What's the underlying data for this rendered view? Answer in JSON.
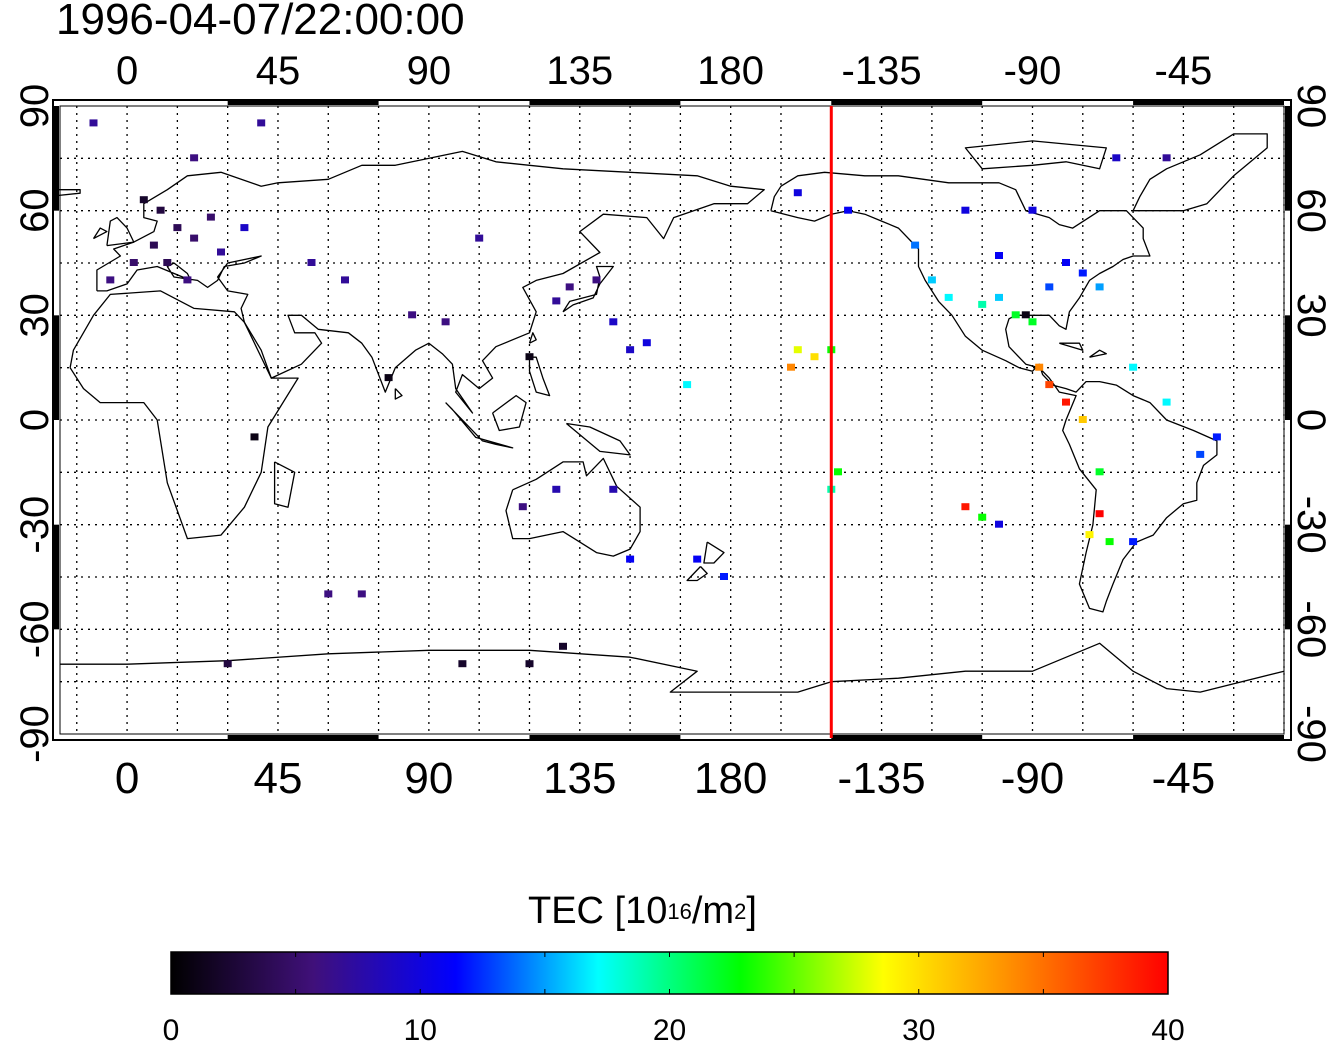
{
  "title": "1996-04-07/22:00:00",
  "map": {
    "projection": "equirectangular",
    "lon_range": [
      -20,
      345
    ],
    "lat_range": [
      -90,
      90
    ],
    "lon_tick_labels_top": [
      "0",
      "45",
      "90",
      "135",
      "180",
      "-135",
      "-90",
      "-45"
    ],
    "lon_tick_labels_bottom": [
      "0",
      "45",
      "90",
      "135",
      "180",
      "-135",
      "-90",
      "-45"
    ],
    "lon_tick_values": [
      0,
      45,
      90,
      135,
      180,
      225,
      270,
      315
    ],
    "lat_tick_labels": [
      "90",
      "60",
      "30",
      "0",
      "-30",
      "-60",
      "-90"
    ],
    "lat_tick_values": [
      90,
      60,
      30,
      0,
      -30,
      -60,
      -90
    ],
    "grid": "dotted, every 15 degrees",
    "marker_line": {
      "lon": "-150",
      "color": "#ff0000"
    }
  },
  "colorbar": {
    "label_parts": {
      "main": "TEC  [10",
      "sup1": "16",
      "mid": "/m",
      "sup2": "2",
      "end": "]"
    },
    "min": 0,
    "max": 40,
    "tick_labels": [
      "0",
      "10",
      "20",
      "30",
      "40"
    ],
    "colormap": "black-purple-blue-cyan-green-yellow-orange-red",
    "stops": [
      "#000000",
      "#40107a",
      "#0000ff",
      "#00ffff",
      "#00ff00",
      "#ffff00",
      "#ff8000",
      "#ff0000"
    ]
  },
  "chart_data": {
    "type": "scatter",
    "title": "1996-04-07/22:00:00",
    "xlabel": "",
    "ylabel": "",
    "value_label": "TEC [10^16/m^2]",
    "xlim": [
      -20,
      345
    ],
    "ylim": [
      -90,
      90
    ],
    "points": [
      {
        "lon": 5,
        "lat": 63,
        "tec": 2
      },
      {
        "lon": 10,
        "lat": 60,
        "tec": 3
      },
      {
        "lon": 15,
        "lat": 55,
        "tec": 4
      },
      {
        "lon": 8,
        "lat": 50,
        "tec": 4
      },
      {
        "lon": 20,
        "lat": 52,
        "tec": 5
      },
      {
        "lon": 25,
        "lat": 58,
        "tec": 5
      },
      {
        "lon": 2,
        "lat": 45,
        "tec": 5
      },
      {
        "lon": 12,
        "lat": 45,
        "tec": 4
      },
      {
        "lon": -5,
        "lat": 40,
        "tec": 6
      },
      {
        "lon": 18,
        "lat": 40,
        "tec": 6
      },
      {
        "lon": 28,
        "lat": 48,
        "tec": 7
      },
      {
        "lon": 35,
        "lat": 55,
        "tec": 9
      },
      {
        "lon": -10,
        "lat": 85,
        "tec": 7
      },
      {
        "lon": 40,
        "lat": 85,
        "tec": 7
      },
      {
        "lon": 20,
        "lat": 75,
        "tec": 6
      },
      {
        "lon": 55,
        "lat": 45,
        "tec": 7
      },
      {
        "lon": 65,
        "lat": 40,
        "tec": 7
      },
      {
        "lon": 105,
        "lat": 52,
        "tec": 7
      },
      {
        "lon": 85,
        "lat": 30,
        "tec": 6
      },
      {
        "lon": 95,
        "lat": 28,
        "tec": 6
      },
      {
        "lon": 78,
        "lat": 12,
        "tec": 1
      },
      {
        "lon": 120,
        "lat": 18,
        "tec": 1
      },
      {
        "lon": 38,
        "lat": -5,
        "tec": 1
      },
      {
        "lon": 132,
        "lat": 38,
        "tec": 6
      },
      {
        "lon": 140,
        "lat": 40,
        "tec": 6
      },
      {
        "lon": 128,
        "lat": 34,
        "tec": 7
      },
      {
        "lon": 145,
        "lat": 28,
        "tec": 9
      },
      {
        "lon": 150,
        "lat": 20,
        "tec": 9
      },
      {
        "lon": 155,
        "lat": 22,
        "tec": 10
      },
      {
        "lon": 167,
        "lat": 10,
        "tec": 17
      },
      {
        "lon": 118,
        "lat": -25,
        "tec": 6
      },
      {
        "lon": 128,
        "lat": -20,
        "tec": 8
      },
      {
        "lon": 145,
        "lat": -20,
        "tec": 8
      },
      {
        "lon": 150,
        "lat": -40,
        "tec": 11
      },
      {
        "lon": 170,
        "lat": -40,
        "tec": 11
      },
      {
        "lon": 178,
        "lat": -45,
        "tec": 12
      },
      {
        "lon": 60,
        "lat": -50,
        "tec": 6
      },
      {
        "lon": 70,
        "lat": -50,
        "tec": 6
      },
      {
        "lon": 30,
        "lat": -70,
        "tec": 3
      },
      {
        "lon": 100,
        "lat": -70,
        "tec": 2
      },
      {
        "lon": 120,
        "lat": -70,
        "tec": 2
      },
      {
        "lon": 130,
        "lat": -65,
        "tec": 2
      },
      {
        "lon": 200,
        "lat": 20,
        "tec": 28
      },
      {
        "lon": 205,
        "lat": 18,
        "tec": 30
      },
      {
        "lon": 198,
        "lat": 15,
        "tec": 34
      },
      {
        "lon": 210,
        "lat": 20,
        "tec": 23
      },
      {
        "lon": 210,
        "lat": -20,
        "tec": 19
      },
      {
        "lon": 212,
        "lat": -15,
        "tec": 23
      },
      {
        "lon": 200,
        "lat": 65,
        "tec": 10
      },
      {
        "lon": 215,
        "lat": 60,
        "tec": 11
      },
      {
        "lon": 235,
        "lat": 50,
        "tec": 14
      },
      {
        "lon": 240,
        "lat": 40,
        "tec": 16
      },
      {
        "lon": 245,
        "lat": 35,
        "tec": 17
      },
      {
        "lon": 255,
        "lat": 33,
        "tec": 19
      },
      {
        "lon": 260,
        "lat": 35,
        "tec": 16
      },
      {
        "lon": 265,
        "lat": 30,
        "tec": 22
      },
      {
        "lon": 270,
        "lat": 28,
        "tec": 22
      },
      {
        "lon": 275,
        "lat": 38,
        "tec": 13
      },
      {
        "lon": 285,
        "lat": 42,
        "tec": 12
      },
      {
        "lon": 280,
        "lat": 45,
        "tec": 11
      },
      {
        "lon": 290,
        "lat": 38,
        "tec": 15
      },
      {
        "lon": 260,
        "lat": 47,
        "tec": 11
      },
      {
        "lon": 250,
        "lat": 60,
        "tec": 10
      },
      {
        "lon": 270,
        "lat": 60,
        "tec": 10
      },
      {
        "lon": 295,
        "lat": 75,
        "tec": 9
      },
      {
        "lon": 310,
        "lat": 75,
        "tec": 7
      },
      {
        "lon": 268,
        "lat": 30,
        "tec": 1
      },
      {
        "lon": 272,
        "lat": 15,
        "tec": 34
      },
      {
        "lon": 275,
        "lat": 10,
        "tec": 37
      },
      {
        "lon": 280,
        "lat": 5,
        "tec": 39
      },
      {
        "lon": 285,
        "lat": 0,
        "tec": 31
      },
      {
        "lon": 290,
        "lat": -15,
        "tec": 22
      },
      {
        "lon": 290,
        "lat": -27,
        "tec": 40
      },
      {
        "lon": 287,
        "lat": -33,
        "tec": 29
      },
      {
        "lon": 293,
        "lat": -35,
        "tec": 23
      },
      {
        "lon": 250,
        "lat": -25,
        "tec": 39
      },
      {
        "lon": 255,
        "lat": -28,
        "tec": 23
      },
      {
        "lon": 260,
        "lat": -30,
        "tec": 10
      },
      {
        "lon": 300,
        "lat": -35,
        "tec": 12
      },
      {
        "lon": 310,
        "lat": 5,
        "tec": 17
      },
      {
        "lon": 320,
        "lat": -10,
        "tec": 13
      },
      {
        "lon": 325,
        "lat": -5,
        "tec": 12
      },
      {
        "lon": 300,
        "lat": 15,
        "tec": 17
      }
    ]
  }
}
